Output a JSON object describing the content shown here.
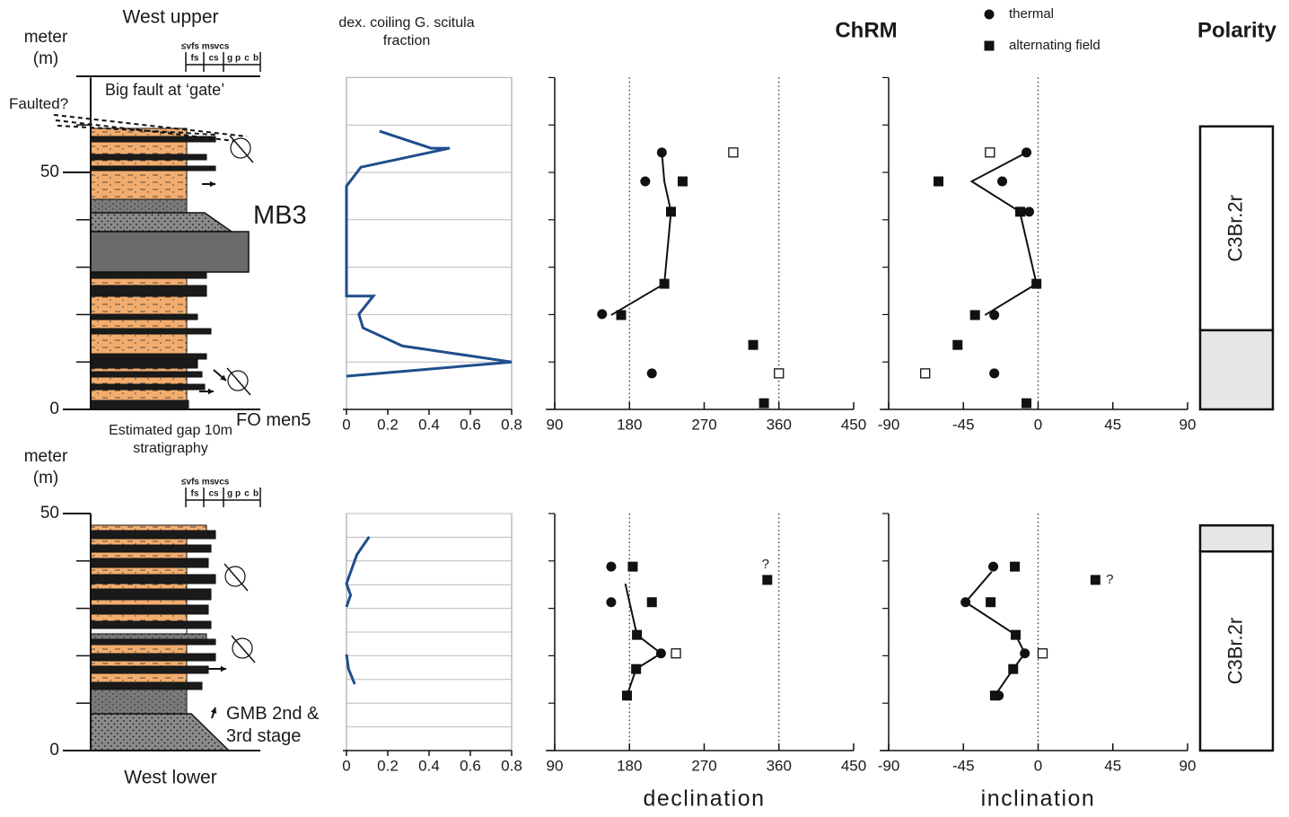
{
  "header": {
    "chrm": "ChRM"
  },
  "chart_data": [
    {
      "type": "strat",
      "title": "West upper",
      "ylabel": "meter (m)",
      "ylim": [
        0,
        70
      ],
      "yticks": [
        0,
        50
      ],
      "minor_yticks": [
        10,
        20,
        30,
        40,
        60
      ],
      "grain_scale": [
        [
          "≤vfs",
          "ms",
          "vcs"
        ],
        [
          "fs",
          "cs",
          "g",
          "p",
          "c",
          "b"
        ]
      ],
      "annotations": [
        "Big fault at ‘gate’",
        "Faulted?",
        "MB3",
        "FO men5"
      ],
      "note": "Estimated gap 10m stratigraphy"
    },
    {
      "type": "line",
      "title": "dex. coiling G. scitula fraction",
      "color": "#1f4e8c",
      "xlim": [
        0,
        0.8
      ],
      "xticks": [
        0,
        0.2,
        0.4,
        0.6,
        0.8
      ],
      "ylim": [
        0,
        70
      ],
      "yticks": [
        0,
        10,
        20,
        30,
        40,
        50,
        60,
        70
      ],
      "grid": true,
      "x": [
        0.16,
        0.41,
        0.5,
        0.07,
        0,
        0,
        0.13,
        0.06,
        0.08,
        0.27,
        0.8,
        0
      ],
      "y": [
        58.7,
        55.1,
        55.1,
        51.1,
        47.1,
        23.9,
        23.9,
        20.1,
        17.2,
        13.4,
        10,
        7
      ]
    },
    {
      "type": "scatter",
      "xlim": [
        90,
        450
      ],
      "xticks": [
        90,
        180,
        270,
        360,
        450
      ],
      "reference_lines": [
        180,
        360
      ],
      "ylim": [
        0,
        70
      ],
      "yticks": [
        0,
        10,
        20,
        30,
        40,
        50,
        60,
        70
      ],
      "series": [
        {
          "name": "thermal",
          "marker": "circle",
          "color": "#111111",
          "x": [
            219,
            199,
            147,
            207
          ],
          "y": [
            54.2,
            48.1,
            20.1,
            7.6
          ]
        },
        {
          "name": "alternating field",
          "marker": "square",
          "color": "#111111",
          "x": [
            244,
            230,
            222,
            170,
            329,
            342
          ],
          "y": [
            48.1,
            41.7,
            26.5,
            19.9,
            13.6,
            1.3
          ]
        },
        {
          "marker": "open-square",
          "color": "#111111",
          "x": [
            305,
            360
          ],
          "y": [
            54.2,
            7.6
          ]
        },
        {
          "marker": "line",
          "color": "#111111",
          "x": [
            219,
            222,
            230,
            222,
            158
          ],
          "y": [
            54.2,
            48.1,
            41.7,
            26.5,
            19.9
          ]
        }
      ]
    },
    {
      "type": "scatter",
      "xlim": [
        -90,
        90
      ],
      "xticks": [
        -90,
        -45,
        0,
        45,
        90
      ],
      "reference_lines": [
        0
      ],
      "ylim": [
        0,
        70
      ],
      "yticks": [
        0,
        10,
        20,
        30,
        40,
        50,
        60,
        70
      ],
      "series": [
        {
          "marker": "circle",
          "color": "#111111",
          "x": [
            -7,
            -21.6,
            -5.4,
            -26.4,
            -26.4
          ],
          "y": [
            54.2,
            48.1,
            41.7,
            19.9,
            7.6
          ]
        },
        {
          "marker": "square",
          "color": "#111111",
          "x": [
            -60,
            -10.8,
            -1,
            -38,
            -48.5,
            -7
          ],
          "y": [
            48.1,
            41.7,
            26.5,
            19.9,
            13.6,
            1.3
          ]
        },
        {
          "marker": "open-square",
          "color": "#111111",
          "x": [
            -29,
            -68
          ],
          "y": [
            54.2,
            7.6
          ]
        },
        {
          "marker": "line",
          "color": "#111111",
          "x": [
            -7,
            -40,
            -11,
            -1,
            -32
          ],
          "y": [
            54.2,
            48.1,
            41.7,
            26.5,
            19.9
          ]
        }
      ]
    },
    {
      "type": "polarity",
      "title": "Polarity",
      "ylim": [
        0,
        70
      ],
      "zones": [
        {
          "from": 16.7,
          "to": 59.7,
          "fill": "#ffffff",
          "label": "C3Br.2r"
        },
        {
          "from": 0,
          "to": 16.7,
          "fill": "#e6e6e6"
        }
      ]
    },
    {
      "type": "strat",
      "title": "West lower",
      "ylabel": "meter (m)",
      "ylim": [
        0,
        50
      ],
      "yticks": [
        0,
        50
      ],
      "minor_yticks": [
        10,
        20,
        30,
        40
      ],
      "grain_scale": [
        [
          "≤vfs",
          "ms",
          "vcs"
        ],
        [
          "fs",
          "cs",
          "g",
          "p",
          "c",
          "b"
        ]
      ],
      "annotations": [
        "GMB 2nd & 3rd stage"
      ]
    },
    {
      "type": "line",
      "color": "#1f4e8c",
      "xlim": [
        0,
        0.8
      ],
      "xticks": [
        0,
        0.2,
        0.4,
        0.6,
        0.8
      ],
      "ylim": [
        0,
        50
      ],
      "yticks": [
        0,
        5,
        10,
        15,
        20,
        25,
        30,
        35,
        40,
        45,
        50
      ],
      "grid": true,
      "x": [
        0.11,
        0.05,
        0,
        0.02,
        0,
        null,
        0,
        0.01,
        0.04
      ],
      "y": [
        45.1,
        41.3,
        35.2,
        32.8,
        30.3,
        null,
        20.3,
        17.2,
        14
      ]
    },
    {
      "type": "scatter",
      "xlabel": "declination",
      "annotation": "?",
      "xlim": [
        90,
        450
      ],
      "xticks": [
        90,
        180,
        270,
        360,
        450
      ],
      "reference_lines": [
        180,
        360
      ],
      "ylim": [
        0,
        50
      ],
      "yticks": [
        0,
        10,
        20,
        30,
        40,
        50
      ],
      "series": [
        {
          "marker": "circle",
          "color": "#111111",
          "x": [
            158,
            158,
            218
          ],
          "y": [
            38.8,
            31.3,
            20.5
          ]
        },
        {
          "marker": "square",
          "color": "#111111",
          "x": [
            184,
            346,
            207,
            189,
            188,
            177
          ],
          "y": [
            38.8,
            36,
            31.3,
            24.4,
            17.2,
            11.6
          ]
        },
        {
          "marker": "open-square",
          "color": "#111111",
          "x": [
            236
          ],
          "y": [
            20.5
          ]
        },
        {
          "marker": "line",
          "color": "#111111",
          "x": [
            175,
            189,
            218,
            188,
            177
          ],
          "y": [
            35.2,
            24.4,
            20.5,
            17.2,
            11.6
          ]
        }
      ]
    },
    {
      "type": "scatter",
      "xlabel": "inclination",
      "annotation": "?",
      "xlim": [
        -90,
        90
      ],
      "xticks": [
        -90,
        -45,
        0,
        45,
        90
      ],
      "reference_lines": [
        0
      ],
      "ylim": [
        0,
        50
      ],
      "yticks": [
        0,
        10,
        20,
        30,
        40,
        50
      ],
      "series": [
        {
          "marker": "circle",
          "color": "#111111",
          "x": [
            -27,
            -43.7,
            -8,
            -23.7
          ],
          "y": [
            38.8,
            31.3,
            20.5,
            11.6
          ]
        },
        {
          "marker": "square",
          "color": "#111111",
          "x": [
            -14,
            34.5,
            -28.6,
            -13.5,
            -15,
            -26
          ],
          "y": [
            38.8,
            36,
            31.3,
            24.4,
            17.2,
            11.6
          ]
        },
        {
          "marker": "open-square",
          "color": "#111111",
          "x": [
            2.7
          ],
          "y": [
            20.5
          ]
        },
        {
          "marker": "line",
          "color": "#111111",
          "x": [
            -28,
            -43.7,
            -13.5,
            -8,
            -15,
            -26
          ],
          "y": [
            37.7,
            31.3,
            24.4,
            20.5,
            17.2,
            11.6
          ]
        }
      ]
    },
    {
      "type": "polarity",
      "ylim": [
        0,
        50
      ],
      "zones": [
        {
          "from": 0,
          "to": 42,
          "fill": "#ffffff",
          "label": "C3Br.2r"
        },
        {
          "from": 42,
          "to": 47.5,
          "fill": "#e6e6e6"
        }
      ]
    }
  ]
}
